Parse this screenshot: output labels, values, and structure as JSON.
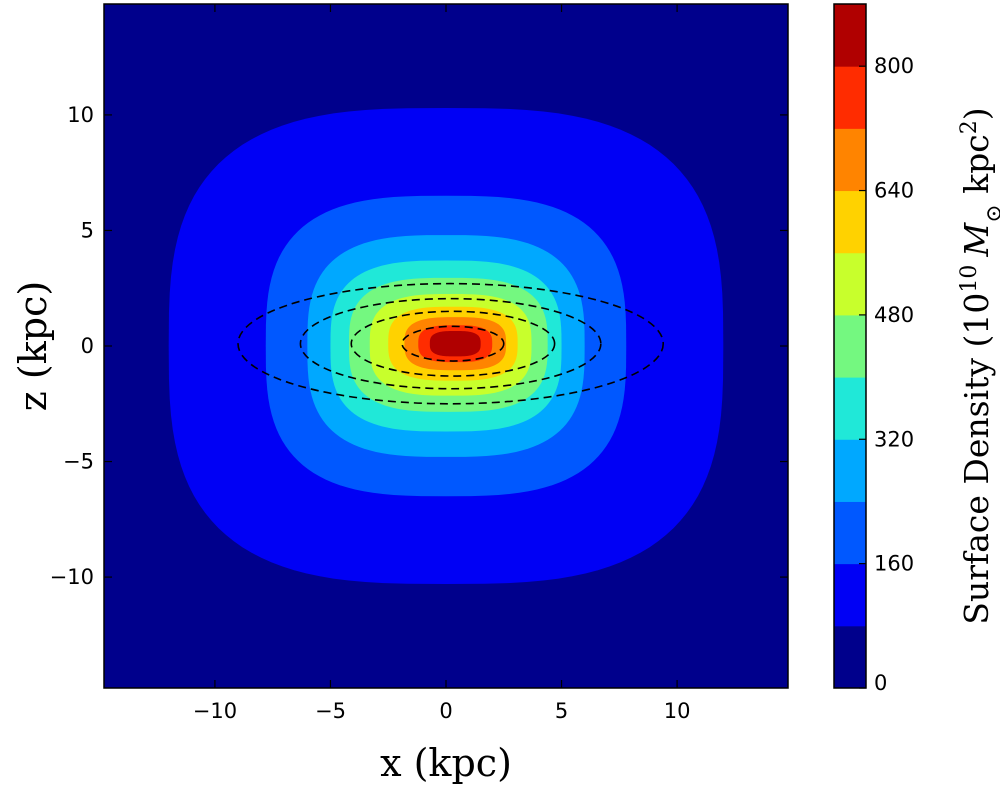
{
  "chart_data": {
    "type": "contour",
    "xlabel": "x (kpc)",
    "ylabel": "z (kpc)",
    "xlim": [
      -14.8,
      14.8
    ],
    "ylim": [
      -14.8,
      14.8
    ],
    "xticks": [
      -10,
      -5,
      0,
      5,
      10
    ],
    "xtick_labels": [
      "−10",
      "−5",
      "0",
      "5",
      "10"
    ],
    "yticks": [
      -10,
      -5,
      0,
      5,
      10
    ],
    "ytick_labels": [
      "−10",
      "−5",
      "0",
      "5",
      "10"
    ],
    "colorbar": {
      "label_prefix": "Surface Density (10",
      "label_exp": "10",
      "label_msun": "M",
      "label_sun_symbol": "⊙",
      "label_unit": " kpc",
      "label_unit_exp": "2",
      "label_suffix": ")",
      "range": [
        0,
        880
      ],
      "ticks": [
        0,
        160,
        320,
        480,
        640,
        800
      ],
      "tick_labels": [
        "0",
        "160",
        "320",
        "480",
        "640",
        "800"
      ]
    },
    "levels": [
      0,
      80,
      160,
      240,
      320,
      400,
      480,
      560,
      640,
      720,
      800,
      880
    ],
    "level_colors": [
      "#00008c",
      "#0000f5",
      "#0058ff",
      "#00a8ff",
      "#20e8d8",
      "#74f880",
      "#c8ff2c",
      "#ffd200",
      "#ff8400",
      "#ff2c00",
      "#b00000"
    ],
    "filled_contours": [
      {
        "level_index": 1,
        "center": [
          0.0,
          0.0
        ],
        "semi_axes": [
          12.0,
          10.3
        ]
      },
      {
        "level_index": 2,
        "center": [
          0.0,
          0.0
        ],
        "semi_axes": [
          7.8,
          6.5
        ]
      },
      {
        "level_index": 3,
        "center": [
          0.0,
          0.0
        ],
        "semi_axes": [
          6.0,
          4.8
        ]
      },
      {
        "level_index": 4,
        "center": [
          0.0,
          0.0
        ],
        "semi_axes": [
          5.0,
          3.7
        ]
      },
      {
        "level_index": 5,
        "center": [
          0.1,
          0.05
        ],
        "semi_axes": [
          4.3,
          2.9
        ]
      },
      {
        "level_index": 6,
        "center": [
          0.2,
          0.05
        ],
        "semi_axes": [
          3.5,
          2.2
        ]
      },
      {
        "level_index": 7,
        "center": [
          0.3,
          0.1
        ],
        "semi_axes": [
          2.8,
          1.6
        ]
      },
      {
        "level_index": 8,
        "center": [
          0.4,
          0.1
        ],
        "semi_axes": [
          2.2,
          1.15
        ]
      },
      {
        "level_index": 9,
        "center": [
          0.4,
          0.1
        ],
        "semi_axes": [
          1.6,
          0.8
        ]
      },
      {
        "level_index": 10,
        "center": [
          0.4,
          0.1
        ],
        "semi_axes": [
          1.1,
          0.55
        ]
      }
    ],
    "dashed_contours": [
      {
        "center": [
          0.2,
          0.1
        ],
        "semi_axes": [
          9.2,
          2.6
        ]
      },
      {
        "center": [
          0.2,
          0.1
        ],
        "semi_axes": [
          6.5,
          1.95
        ]
      },
      {
        "center": [
          0.3,
          0.1
        ],
        "semi_axes": [
          4.4,
          1.4
        ]
      },
      {
        "center": [
          0.3,
          0.1
        ],
        "semi_axes": [
          2.2,
          0.75
        ]
      }
    ]
  }
}
